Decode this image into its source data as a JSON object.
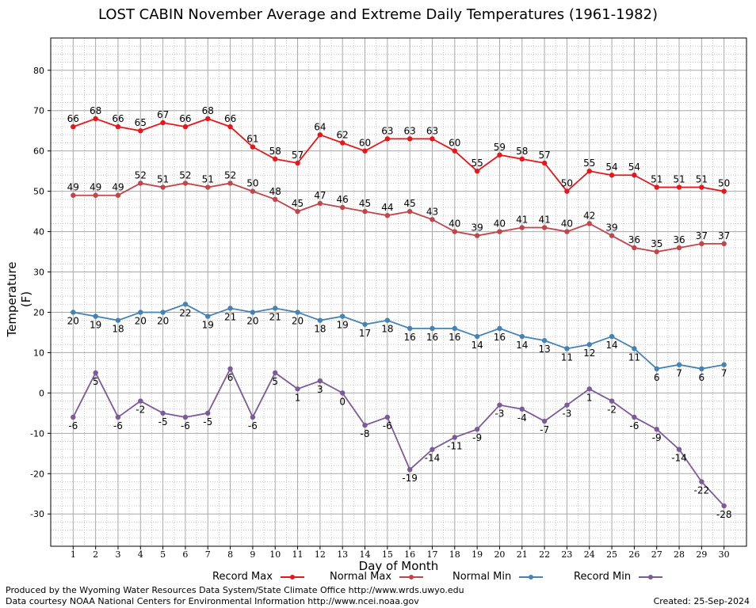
{
  "chart_data": {
    "type": "line",
    "title": "LOST CABIN November Average and Extreme Daily Temperatures (1961-1982)",
    "xlabel": "Day of Month",
    "ylabel": "Temperature (F)",
    "x": [
      1,
      2,
      3,
      4,
      5,
      6,
      7,
      8,
      9,
      10,
      11,
      12,
      13,
      14,
      15,
      16,
      17,
      18,
      19,
      20,
      21,
      22,
      23,
      24,
      25,
      26,
      27,
      28,
      29,
      30
    ],
    "xlim": [
      0,
      31
    ],
    "ylim": [
      -38,
      88
    ],
    "yticks": [
      -30,
      -20,
      -10,
      0,
      10,
      20,
      30,
      40,
      50,
      60,
      70,
      80
    ],
    "grid": true,
    "legend_position": "bottom",
    "series": [
      {
        "name": "Record Max",
        "color": "#e8161b",
        "values": [
          66,
          68,
          66,
          65,
          67,
          66,
          68,
          66,
          61,
          58,
          57,
          64,
          62,
          60,
          63,
          63,
          63,
          60,
          55,
          59,
          58,
          57,
          50,
          55,
          54,
          54,
          51,
          51,
          51,
          50
        ]
      },
      {
        "name": "Normal Max",
        "color": "#c0464b",
        "values": [
          49,
          49,
          49,
          52,
          51,
          52,
          51,
          52,
          50,
          48,
          45,
          47,
          46,
          45,
          44,
          45,
          43,
          40,
          39,
          40,
          41,
          41,
          40,
          42,
          39,
          36,
          35,
          36,
          37,
          37
        ]
      },
      {
        "name": "Normal Min",
        "color": "#4682b4",
        "values": [
          20,
          19,
          18,
          20,
          20,
          22,
          19,
          21,
          20,
          21,
          20,
          18,
          19,
          17,
          18,
          16,
          16,
          16,
          14,
          16,
          14,
          13,
          11,
          12,
          14,
          11,
          6,
          7,
          6,
          7
        ]
      },
      {
        "name": "Record Min",
        "color": "#7b5a9a",
        "values": [
          -6,
          5,
          -6,
          -2,
          -5,
          -6,
          -5,
          6,
          -6,
          5,
          1,
          3,
          0,
          -8,
          -6,
          -19,
          -14,
          -11,
          -9,
          -3,
          -4,
          -7,
          -3,
          1,
          -2,
          -6,
          -9,
          -14,
          -22,
          -28
        ]
      }
    ]
  },
  "footer": {
    "produced_by": "Produced by the Wyoming Water Resources Data System/State Climate Office http://www.wrds.uwyo.edu",
    "courtesy": "Data courtesy NOAA National Centers for Environmental Information http://www.ncei.noaa.gov",
    "created": "Created:  25-Sep-2024"
  }
}
